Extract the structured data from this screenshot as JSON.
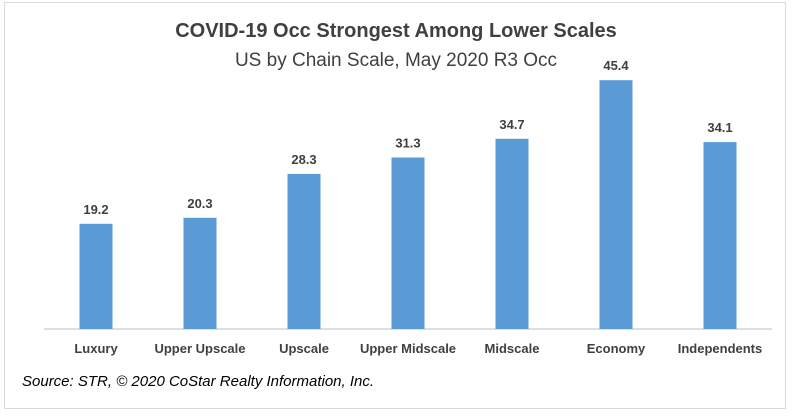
{
  "chart_data": {
    "type": "bar",
    "title": "COVID-19 Occ Strongest Among Lower Scales",
    "subtitle": "US by Chain Scale, May 2020 R3 Occ",
    "categories": [
      "Luxury",
      "Upper Upscale",
      "Upscale",
      "Upper Midscale",
      "Midscale",
      "Economy",
      "Independents"
    ],
    "values": [
      19.2,
      20.3,
      28.3,
      31.3,
      34.7,
      45.4,
      34.1
    ],
    "value_labels": [
      "19.2",
      "20.3",
      "28.3",
      "31.3",
      "34.7",
      "45.4",
      "34.1"
    ],
    "ylim": [
      0,
      50
    ],
    "grid": false,
    "legend": "none",
    "bar_color": "#5b9bd5",
    "axis_color": "#bfbfbf"
  },
  "source": "Source: STR, © 2020 CoStar Realty Information, Inc."
}
